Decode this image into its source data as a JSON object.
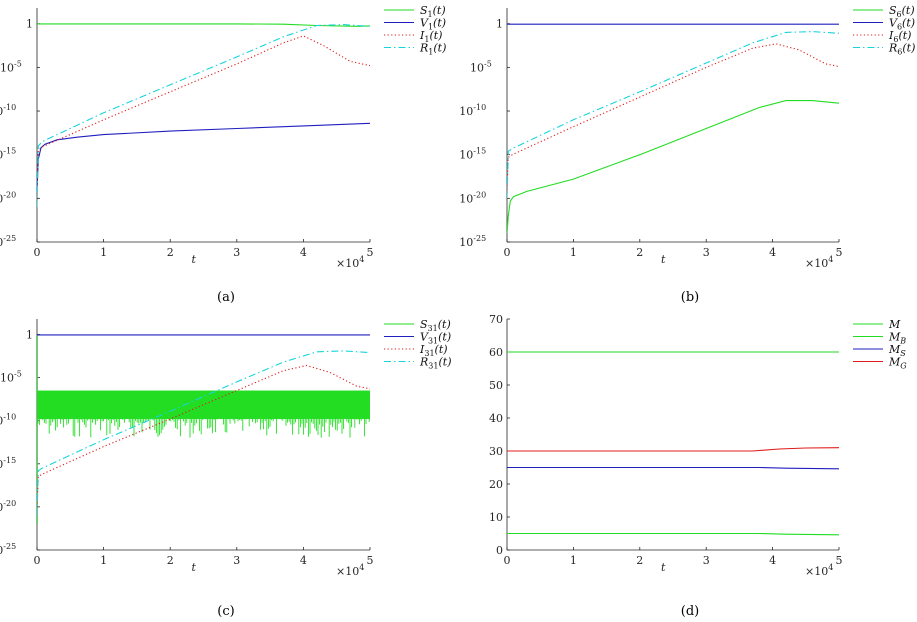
{
  "chart_data": [
    {
      "type": "line",
      "panel": "a",
      "caption": "(a)",
      "yscale": "log",
      "xlabel": "t",
      "x_multiplier": "×10",
      "x_multiplier_exp": "4",
      "xlim": [
        0,
        5
      ],
      "xticks": [
        "0",
        "1",
        "2",
        "3",
        "4",
        "5"
      ],
      "ylim_log10": [
        -25,
        1.8
      ],
      "yticks": [
        {
          "v": 0,
          "b": "1",
          "e": ""
        },
        {
          "v": -5,
          "b": "10",
          "e": "-5"
        },
        {
          "v": -10,
          "b": "10",
          "e": "-10"
        },
        {
          "v": -15,
          "b": "10",
          "e": "-15"
        },
        {
          "v": -20,
          "b": "10",
          "e": "-20"
        },
        {
          "v": -25,
          "b": "10",
          "e": "-25"
        }
      ],
      "legend_position": "outside-right",
      "series": [
        {
          "name": "S",
          "sub": "1",
          "arg": "(t)",
          "color": "#22dd22",
          "dash": "solid",
          "x": [
            0,
            0.02,
            1,
            2,
            3,
            3.7,
            4.2,
            4.8,
            5
          ],
          "log10": [
            -0.02,
            -0.02,
            -0.02,
            -0.02,
            -0.02,
            -0.05,
            -0.2,
            -0.3,
            -0.25
          ]
        },
        {
          "name": "V",
          "sub": "1",
          "arg": "(t)",
          "color": "#1f1fbf",
          "dash": "solid",
          "x": [
            0,
            0.02,
            0.06,
            0.12,
            0.3,
            0.6,
            1,
            2,
            3,
            4,
            5
          ],
          "log10": [
            -19,
            -15.5,
            -14.2,
            -13.8,
            -13.3,
            -13,
            -12.7,
            -12.3,
            -12,
            -11.7,
            -11.4
          ]
        },
        {
          "name": "I",
          "sub": "1",
          "arg": "(t)",
          "color": "#e01b1b",
          "dash": "dotted",
          "x": [
            0,
            0.02,
            0.08,
            1,
            2,
            3,
            3.7,
            4.0,
            4.3,
            4.7,
            5
          ],
          "log10": [
            -18,
            -14.5,
            -14.1,
            -11,
            -7.8,
            -4.6,
            -2.2,
            -1.4,
            -2.5,
            -4.3,
            -4.8
          ]
        },
        {
          "name": "R",
          "sub": "1",
          "arg": "(t)",
          "color": "#17d4dc",
          "dash": "dashdot",
          "x": [
            0,
            0.02,
            0.08,
            1,
            2,
            3,
            3.7,
            4.2,
            4.6,
            5
          ],
          "log10": [
            -21,
            -14,
            -13.5,
            -10.2,
            -7,
            -3.8,
            -1.5,
            -0.2,
            -0.1,
            -0.3
          ]
        }
      ]
    },
    {
      "type": "line",
      "panel": "b",
      "caption": "(b)",
      "yscale": "log",
      "xlabel": "t",
      "x_multiplier": "×10",
      "x_multiplier_exp": "4",
      "xlim": [
        0,
        5
      ],
      "xticks": [
        "0",
        "1",
        "2",
        "3",
        "4",
        "5"
      ],
      "ylim_log10": [
        -25,
        1.8
      ],
      "yticks": [
        {
          "v": 0,
          "b": "1",
          "e": ""
        },
        {
          "v": -5,
          "b": "10",
          "e": "-5"
        },
        {
          "v": -10,
          "b": "10",
          "e": "-10"
        },
        {
          "v": -15,
          "b": "10",
          "e": "-15"
        },
        {
          "v": -20,
          "b": "10",
          "e": "-20"
        },
        {
          "v": -25,
          "b": "10",
          "e": "-25"
        }
      ],
      "legend_position": "outside-right",
      "series": [
        {
          "name": "S",
          "sub": "6",
          "arg": "(t)",
          "color": "#22dd22",
          "dash": "solid",
          "x": [
            0,
            0.02,
            0.05,
            0.1,
            0.3,
            1,
            2,
            3,
            3.8,
            4.2,
            4.6,
            5
          ],
          "log10": [
            -24,
            -22,
            -20.3,
            -19.8,
            -19.2,
            -17.8,
            -15,
            -12,
            -9.6,
            -8.8,
            -8.8,
            -9.1
          ]
        },
        {
          "name": "V",
          "sub": "6",
          "arg": "(t)",
          "color": "#1f1fbf",
          "dash": "solid",
          "x": [
            0,
            5
          ],
          "log10": [
            -0.05,
            -0.05
          ]
        },
        {
          "name": "I",
          "sub": "6",
          "arg": "(t)",
          "color": "#e01b1b",
          "dash": "dotted",
          "x": [
            0,
            0.02,
            0.08,
            1,
            2,
            3,
            3.7,
            4.05,
            4.4,
            4.8,
            5
          ],
          "log10": [
            -19,
            -15.3,
            -15,
            -11.8,
            -8.4,
            -5,
            -2.8,
            -2.3,
            -3,
            -4.6,
            -4.9
          ]
        },
        {
          "name": "R",
          "sub": "6",
          "arg": "(t)",
          "color": "#17d4dc",
          "dash": "dashdot",
          "x": [
            0,
            0.02,
            0.08,
            1,
            2,
            3,
            3.7,
            4.2,
            4.6,
            5
          ],
          "log10": [
            -20,
            -14.6,
            -14.3,
            -11,
            -7.8,
            -4.5,
            -2.2,
            -1,
            -0.9,
            -1.1
          ]
        }
      ]
    },
    {
      "type": "line",
      "panel": "c",
      "caption": "(c)",
      "yscale": "log",
      "xlabel": "t",
      "x_multiplier": "×10",
      "x_multiplier_exp": "4",
      "xlim": [
        0,
        5
      ],
      "xticks": [
        "0",
        "1",
        "2",
        "3",
        "4",
        "5"
      ],
      "ylim_log10": [
        -25,
        1.8
      ],
      "yticks": [
        {
          "v": 0,
          "b": "1",
          "e": ""
        },
        {
          "v": -5,
          "b": "10",
          "e": "-5"
        },
        {
          "v": -10,
          "b": "10",
          "e": "-10"
        },
        {
          "v": -15,
          "b": "10",
          "e": "-15"
        },
        {
          "v": -20,
          "b": "10",
          "e": "-20"
        },
        {
          "v": -25,
          "b": "10",
          "e": "-25"
        }
      ],
      "legend_position": "outside-right",
      "series": [
        {
          "name": "S",
          "sub": "31",
          "arg": "(t)",
          "color": "#22dd22",
          "dash": "solid",
          "style": "oscillating-band",
          "x": [
            0,
            5
          ],
          "band_top_log10": -6.5,
          "band_bottom_log10": -9.8,
          "spike_min_log10": -12
        },
        {
          "name": "V",
          "sub": "31",
          "arg": "(t)",
          "color": "#1f1fbf",
          "dash": "solid",
          "x": [
            0,
            5
          ],
          "log10": [
            -0.05,
            -0.05
          ]
        },
        {
          "name": "I",
          "sub": "31",
          "arg": "(t)",
          "color": "#e01b1b",
          "dash": "dotted",
          "x": [
            0,
            0.02,
            0.08,
            1,
            2,
            3,
            3.7,
            4.05,
            4.4,
            4.8,
            5
          ],
          "log10": [
            -20,
            -16.5,
            -16.2,
            -13,
            -9.8,
            -6.5,
            -4.2,
            -3.6,
            -4.4,
            -6,
            -6.3
          ]
        },
        {
          "name": "R",
          "sub": "31",
          "arg": "(t)",
          "color": "#17d4dc",
          "dash": "dashdot",
          "x": [
            0,
            0.02,
            0.08,
            1,
            2,
            3,
            3.7,
            4.2,
            4.6,
            5
          ],
          "log10": [
            -21,
            -15.8,
            -15.5,
            -12.2,
            -8.9,
            -5.5,
            -3.2,
            -2,
            -1.9,
            -2.1
          ]
        }
      ]
    },
    {
      "type": "line",
      "panel": "d",
      "caption": "(d)",
      "yscale": "linear",
      "xlabel": "t",
      "x_multiplier": "×10",
      "x_multiplier_exp": "4",
      "xlim": [
        0,
        5
      ],
      "xticks": [
        "0",
        "1",
        "2",
        "3",
        "4",
        "5"
      ],
      "ylim": [
        0,
        70
      ],
      "yticks": [
        {
          "v": 0,
          "b": "0",
          "e": ""
        },
        {
          "v": 10,
          "b": "10",
          "e": ""
        },
        {
          "v": 20,
          "b": "20",
          "e": ""
        },
        {
          "v": 30,
          "b": "30",
          "e": ""
        },
        {
          "v": 40,
          "b": "40",
          "e": ""
        },
        {
          "v": 50,
          "b": "50",
          "e": ""
        },
        {
          "v": 60,
          "b": "60",
          "e": ""
        },
        {
          "v": 70,
          "b": "70",
          "e": ""
        }
      ],
      "legend_position": "outside-right",
      "series": [
        {
          "name": "M",
          "sub": "",
          "arg": "",
          "color": "#22dd22",
          "dash": "solid",
          "x": [
            0,
            5
          ],
          "y": [
            60,
            60
          ]
        },
        {
          "name": "M",
          "sub": "B",
          "arg": "",
          "color": "#22dd22",
          "dash": "solid",
          "x": [
            0,
            3.8,
            4.2,
            5
          ],
          "y": [
            5,
            5,
            4.8,
            4.6
          ]
        },
        {
          "name": "M",
          "sub": "S",
          "arg": "",
          "color": "#1f1fbf",
          "dash": "solid",
          "x": [
            0,
            3.8,
            4.2,
            5
          ],
          "y": [
            25,
            25,
            24.8,
            24.6
          ]
        },
        {
          "name": "M",
          "sub": "G",
          "arg": "",
          "color": "#e01b1b",
          "dash": "solid",
          "x": [
            0,
            3.7,
            4.1,
            4.5,
            5
          ],
          "y": [
            30,
            30,
            30.6,
            30.9,
            31
          ]
        }
      ]
    }
  ]
}
